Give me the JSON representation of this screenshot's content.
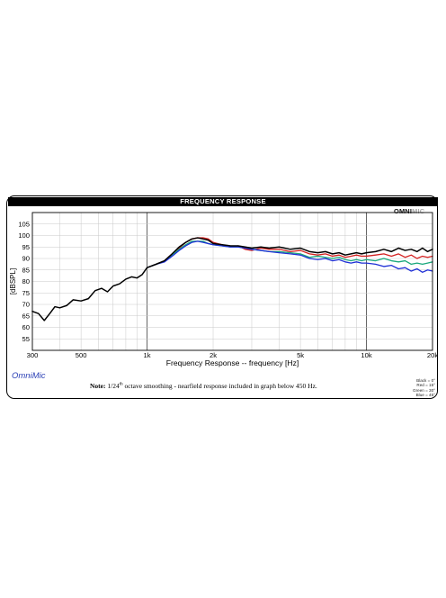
{
  "header": {
    "title": "FREQUENCY RESPONSE",
    "brand_a": "OMNI",
    "brand_b": "MIC"
  },
  "footer": {
    "app_label": "OmniMic",
    "note_bold": "Note:",
    "note_pre": "1/24",
    "note_sup": "th",
    "note_post": "octave smoothing - nearfield response included in graph below 450 Hz.",
    "key": [
      "Black = 0°",
      "Red = 15°",
      "Green = 30°",
      "Blue = 45°"
    ]
  },
  "chart_data": {
    "type": "line",
    "xlabel": "Frequency Response -- frequency [Hz]",
    "ylabel": "[dBSPL]",
    "xscale": "log",
    "xlim": [
      300,
      20000
    ],
    "ylim": [
      50,
      110
    ],
    "yticks": [
      55,
      60,
      65,
      70,
      75,
      80,
      85,
      90,
      95,
      100,
      105
    ],
    "xticks": [
      {
        "value": 300,
        "label": "300"
      },
      {
        "value": 500,
        "label": "500"
      },
      {
        "value": 1000,
        "label": "1k"
      },
      {
        "value": 2000,
        "label": "2k"
      },
      {
        "value": 5000,
        "label": "5k"
      },
      {
        "value": 10000,
        "label": "10k"
      },
      {
        "value": 20000,
        "label": "20k"
      }
    ],
    "grid": true,
    "series": [
      {
        "name": "Black = 0°",
        "color": "#000000",
        "x": [
          300,
          320,
          340,
          360,
          380,
          400,
          430,
          460,
          500,
          540,
          580,
          620,
          660,
          700,
          750,
          800,
          850,
          900,
          950,
          1000,
          1100,
          1200,
          1300,
          1400,
          1500,
          1600,
          1700,
          1800,
          1900,
          2000,
          2200,
          2400,
          2600,
          2800,
          3000,
          3300,
          3600,
          4000,
          4500,
          5000,
          5500,
          6000,
          6500,
          7000,
          7500,
          8000,
          8500,
          9000,
          9500,
          10000,
          11000,
          12000,
          13000,
          14000,
          15000,
          16000,
          17000,
          18000,
          19000,
          20000
        ],
        "values": [
          67,
          66,
          63,
          66,
          69,
          68.5,
          69.5,
          72,
          71.5,
          72.5,
          76,
          77,
          75.5,
          78,
          79,
          81,
          82,
          81.5,
          83,
          86,
          87.5,
          89,
          92,
          95,
          97,
          98.5,
          99,
          98.5,
          98,
          96.5,
          96,
          95.5,
          95.5,
          95,
          94.5,
          95,
          94.5,
          95,
          94,
          94.5,
          93,
          92.5,
          93,
          92,
          92.5,
          91.5,
          92,
          92.5,
          92,
          92.5,
          93,
          94,
          93,
          94.5,
          93.5,
          94,
          93,
          94.5,
          93,
          94
        ]
      },
      {
        "name": "Red = 15°",
        "color": "#d42020",
        "x": [
          1000,
          1100,
          1200,
          1300,
          1400,
          1500,
          1600,
          1700,
          1800,
          1900,
          2000,
          2200,
          2400,
          2600,
          2800,
          3000,
          3300,
          3600,
          4000,
          4500,
          5000,
          5500,
          6000,
          6500,
          7000,
          7500,
          8000,
          8500,
          9000,
          9500,
          10000,
          11000,
          12000,
          13000,
          14000,
          15000,
          16000,
          17000,
          18000,
          19000,
          20000
        ],
        "values": [
          86,
          87.5,
          89,
          92,
          94.5,
          97,
          98.5,
          99,
          99,
          98.5,
          97,
          96,
          95,
          95.5,
          94,
          93.5,
          94.5,
          94,
          94,
          93,
          93.5,
          92,
          91.5,
          92,
          91,
          91.5,
          90.5,
          91,
          91.5,
          91,
          91,
          91.5,
          92,
          91,
          92,
          90.5,
          91.5,
          90,
          91,
          90.5,
          91
        ]
      },
      {
        "name": "Green = 30°",
        "color": "#1aa87c",
        "x": [
          1000,
          1100,
          1200,
          1300,
          1400,
          1500,
          1600,
          1700,
          1800,
          1900,
          2000,
          2200,
          2400,
          2600,
          2800,
          3000,
          3300,
          3600,
          4000,
          4500,
          5000,
          5500,
          6000,
          6500,
          7000,
          7500,
          8000,
          8500,
          9000,
          9500,
          10000,
          11000,
          12000,
          13000,
          14000,
          15000,
          16000,
          17000,
          18000,
          19000,
          20000
        ],
        "values": [
          86,
          87.5,
          89,
          91.5,
          94,
          96,
          97.5,
          97.5,
          97.5,
          96.5,
          96,
          95.5,
          95,
          95,
          94.5,
          94,
          93.5,
          93,
          93,
          92.5,
          92,
          90.5,
          91,
          90.5,
          90,
          90.5,
          89.5,
          89,
          89.5,
          89,
          89.5,
          89,
          90,
          89,
          88.5,
          89,
          87.5,
          88,
          87.5,
          88,
          88.5
        ]
      },
      {
        "name": "Blue = 45°",
        "color": "#1e2fd6",
        "x": [
          1000,
          1100,
          1200,
          1300,
          1400,
          1500,
          1600,
          1700,
          1800,
          1900,
          2000,
          2200,
          2400,
          2600,
          2800,
          3000,
          3300,
          3600,
          4000,
          4500,
          5000,
          5500,
          6000,
          6500,
          7000,
          7500,
          8000,
          8500,
          9000,
          9500,
          10000,
          11000,
          12000,
          13000,
          14000,
          15000,
          16000,
          17000,
          18000,
          19000,
          20000
        ],
        "values": [
          86,
          87.5,
          88.5,
          91,
          93.5,
          95.5,
          97,
          97.5,
          97,
          96.5,
          96,
          95.5,
          95,
          95,
          94.5,
          94,
          93.5,
          93,
          92.5,
          92,
          91.5,
          90,
          89.5,
          90,
          89,
          89.5,
          88.5,
          88,
          88.5,
          88,
          88,
          87.5,
          86.5,
          87,
          85.5,
          86,
          84.5,
          85.5,
          84,
          85,
          84.5
        ]
      }
    ]
  }
}
